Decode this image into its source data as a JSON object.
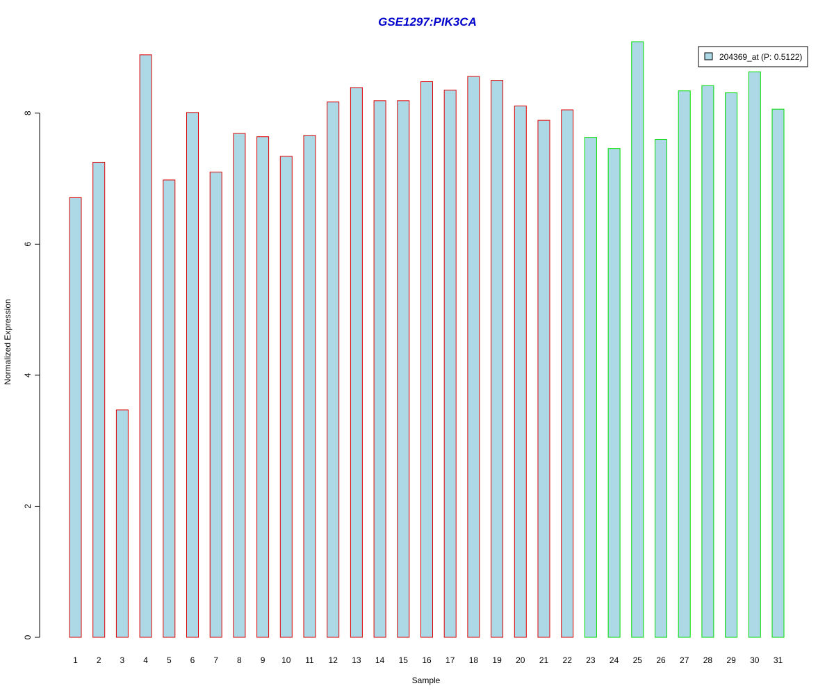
{
  "chart_data": {
    "type": "bar",
    "title": "GSE1297:PIK3CA",
    "xlabel": "Sample",
    "ylabel": "Normalized Expression",
    "categories": [
      "1",
      "2",
      "3",
      "4",
      "5",
      "6",
      "7",
      "8",
      "9",
      "10",
      "11",
      "12",
      "13",
      "14",
      "15",
      "16",
      "17",
      "18",
      "19",
      "20",
      "21",
      "22",
      "23",
      "24",
      "25",
      "26",
      "27",
      "28",
      "29",
      "30",
      "31"
    ],
    "series": [
      {
        "name": "204369_at (P: 0.5122)",
        "values": [
          6.71,
          7.25,
          3.47,
          8.89,
          6.98,
          8.01,
          7.1,
          7.69,
          7.64,
          7.34,
          7.66,
          8.17,
          8.39,
          8.19,
          8.19,
          8.48,
          8.35,
          8.56,
          8.5,
          8.11,
          7.89,
          8.05,
          7.63,
          7.46,
          9.09,
          7.6,
          8.34,
          8.42,
          8.31,
          8.63,
          8.06
        ]
      }
    ],
    "group_outline_colors": [
      "#dd0000",
      "#dd0000",
      "#dd0000",
      "#dd0000",
      "#dd0000",
      "#dd0000",
      "#dd0000",
      "#dd0000",
      "#dd0000",
      "#dd0000",
      "#dd0000",
      "#dd0000",
      "#dd0000",
      "#dd0000",
      "#dd0000",
      "#dd0000",
      "#dd0000",
      "#dd0000",
      "#dd0000",
      "#dd0000",
      "#dd0000",
      "#dd0000",
      "#00dd00",
      "#00dd00",
      "#00dd00",
      "#00dd00",
      "#00dd00",
      "#00dd00",
      "#00dd00",
      "#00dd00",
      "#00dd00"
    ],
    "bar_fill": "#add8e6",
    "title_color": "#0000cc",
    "yticks": [
      0,
      2,
      4,
      6,
      8
    ],
    "ylim": [
      0,
      9.09
    ],
    "legend": {
      "placement": "top-right"
    },
    "grid": false
  }
}
